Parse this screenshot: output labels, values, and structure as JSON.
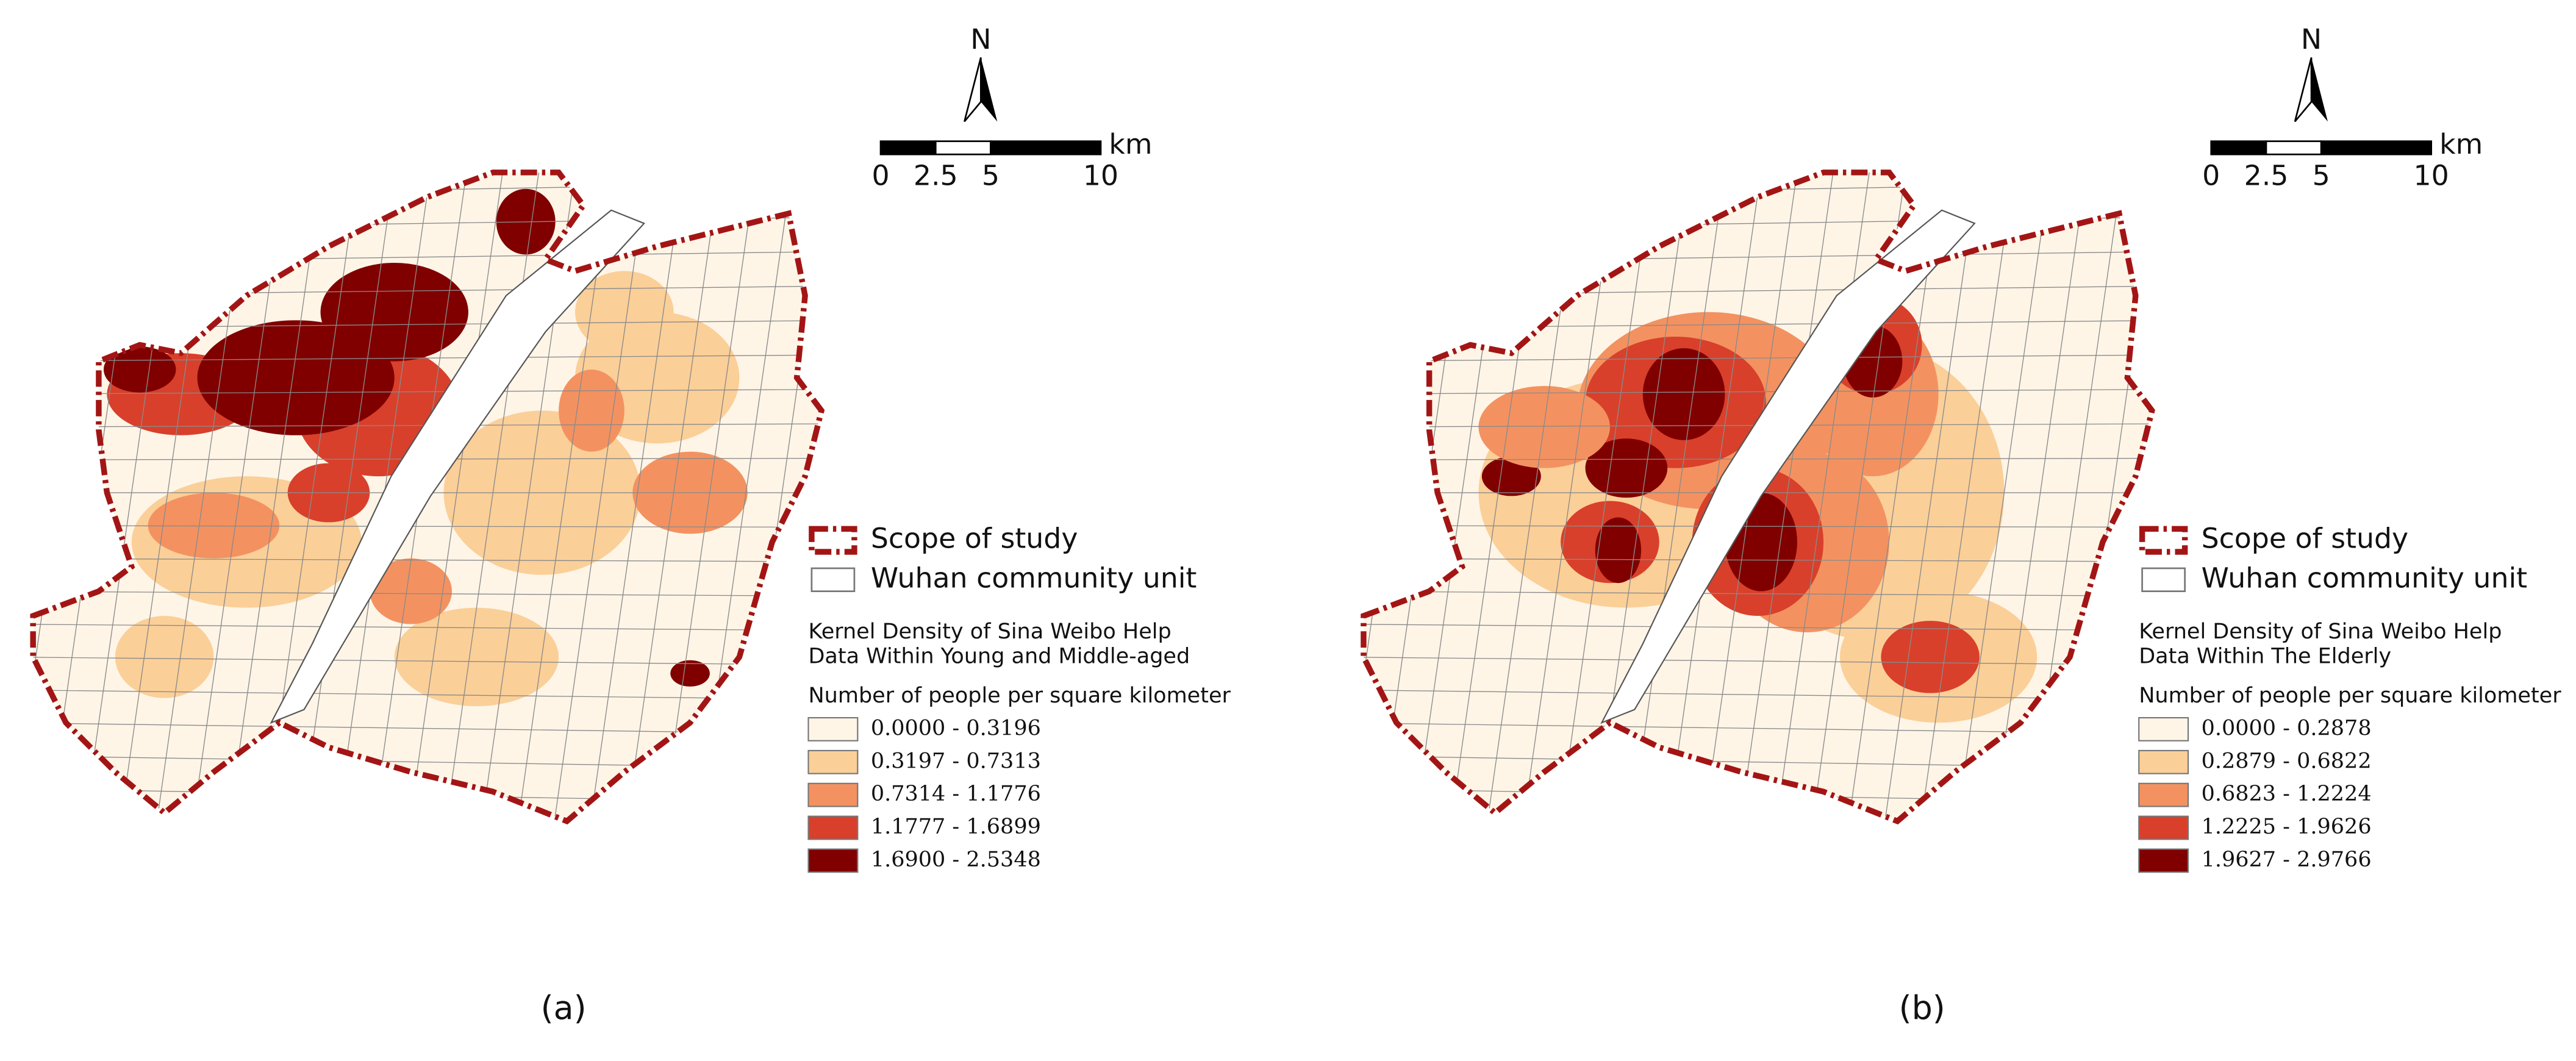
{
  "panels": [
    {
      "label": "(a)",
      "north": "N",
      "scale": {
        "unit": "km",
        "ticks": [
          0,
          2.5,
          5,
          10
        ]
      },
      "legend": {
        "boundary": "Scope of study",
        "unit": "Wuhan community unit",
        "title": [
          "Kernel Density of Sina Weibo Help",
          "Data Within Young and Middle-aged"
        ],
        "subtitle": "Number of people per square kilometer",
        "classes": [
          {
            "label": "0.0000 - 0.3196",
            "color": "#fef5e7"
          },
          {
            "label": "0.3197 - 0.7313",
            "color": "#fbcf98"
          },
          {
            "label": "0.7314 - 1.1776",
            "color": "#f39260"
          },
          {
            "label": "1.1777 - 1.6899",
            "color": "#d8402b"
          },
          {
            "label": "1.6900 - 2.5348",
            "color": "#800000"
          }
        ]
      }
    },
    {
      "label": "(b)",
      "north": "N",
      "scale": {
        "unit": "km",
        "ticks": [
          0,
          2.5,
          5,
          10
        ]
      },
      "legend": {
        "boundary": "Scope of study",
        "unit": "Wuhan community unit",
        "title": [
          "Kernel Density of Sina Weibo Help",
          "Data Within The Elderly"
        ],
        "subtitle": "Number of people per square kilometer",
        "classes": [
          {
            "label": "0.0000 - 0.2878",
            "color": "#fef5e7"
          },
          {
            "label": "0.2879 - 0.6822",
            "color": "#fbcf98"
          },
          {
            "label": "0.6823 - 1.2224",
            "color": "#f39260"
          },
          {
            "label": "1.2225 - 1.9626",
            "color": "#d8402b"
          },
          {
            "label": "1.9627 - 2.9766",
            "color": "#800000"
          }
        ]
      }
    }
  ]
}
